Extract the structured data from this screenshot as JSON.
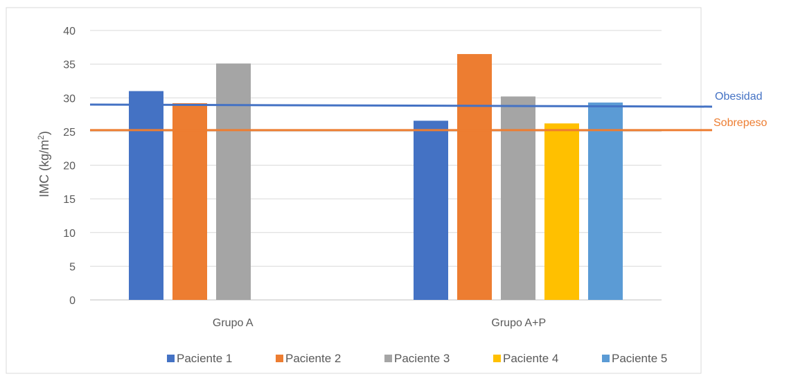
{
  "chart_data": {
    "type": "bar",
    "title": "",
    "xlabel": "",
    "ylabel": "IMC (kg/m",
    "ylabel_sup": "2",
    "ylabel_close": ")",
    "ylim": [
      0,
      40
    ],
    "yticks": [
      0,
      5,
      10,
      15,
      20,
      25,
      30,
      35,
      40
    ],
    "grid": true,
    "legend_position": "bottom",
    "categories": [
      "Grupo A",
      "Grupo A+P"
    ],
    "series": [
      {
        "name": "Paciente 1",
        "color": "#4472C4",
        "values": [
          31.0,
          26.6
        ]
      },
      {
        "name": "Paciente 2",
        "color": "#ED7D31",
        "values": [
          29.2,
          36.5
        ]
      },
      {
        "name": "Paciente 3",
        "color": "#A5A5A5",
        "values": [
          35.1,
          30.2
        ]
      },
      {
        "name": "Paciente 4",
        "color": "#FFC000",
        "values": [
          null,
          26.2
        ]
      },
      {
        "name": "Paciente 5",
        "color": "#5B9BD5",
        "values": [
          null,
          29.3
        ]
      }
    ],
    "reference_lines": [
      {
        "label": "Obesidad",
        "value": 29.0,
        "color": "#4472C4"
      },
      {
        "label": "Sobrepeso",
        "value": 25.2,
        "color": "#ED7D31"
      }
    ]
  }
}
